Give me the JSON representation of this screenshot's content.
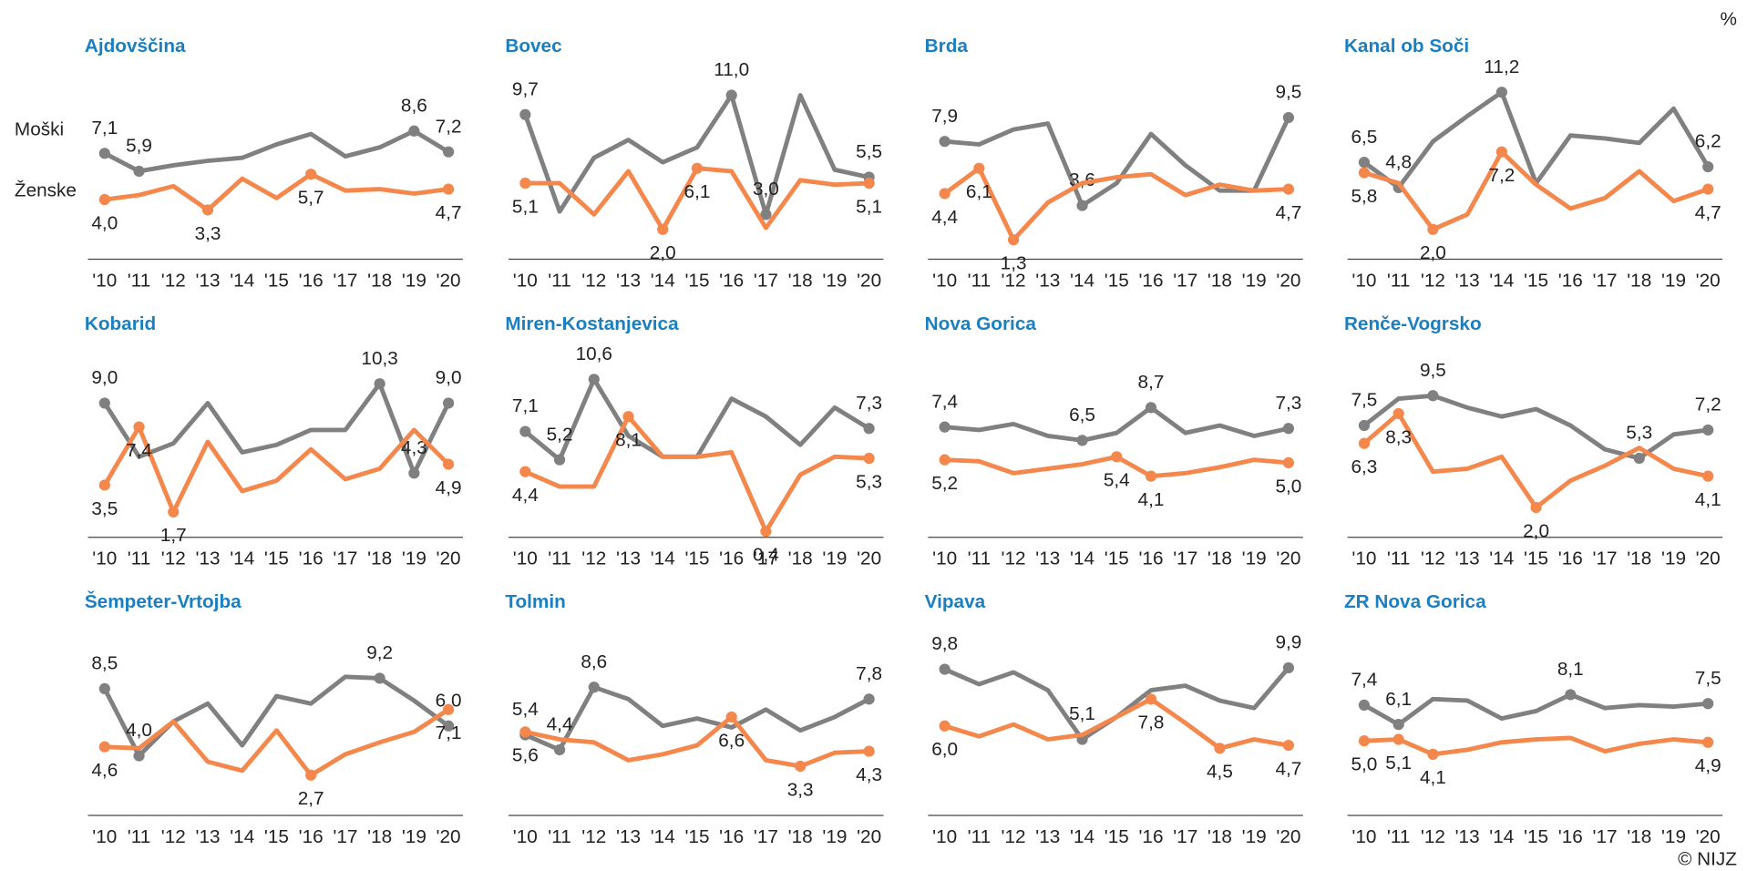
{
  "unit": "%",
  "source": "© NIJZ",
  "chart_data": [
    {
      "type": "line",
      "title": "Ajdovščina",
      "categories": [
        "'10",
        "'11",
        "'12",
        "'13",
        "'14",
        "'15",
        "'16",
        "'17",
        "'18",
        "'19",
        "'20"
      ],
      "ylim": [
        0,
        12
      ],
      "series": [
        {
          "name": "Moški",
          "color": "#808080",
          "values": [
            7.1,
            5.9,
            6.3,
            6.6,
            6.8,
            7.7,
            8.4,
            6.9,
            7.5,
            8.6,
            7.2
          ],
          "value_labels": [
            "7,1",
            "5,9",
            null,
            null,
            null,
            null,
            null,
            null,
            null,
            "8,6",
            "7,2"
          ]
        },
        {
          "name": "Ženske",
          "color": "#f4874b",
          "values": [
            4.0,
            4.3,
            4.9,
            3.3,
            5.4,
            4.1,
            5.7,
            4.6,
            4.7,
            4.4,
            4.7
          ],
          "value_labels": [
            "4,0",
            null,
            null,
            "3,3",
            null,
            null,
            "5,7",
            null,
            null,
            null,
            "4,7"
          ]
        }
      ]
    },
    {
      "type": "line",
      "title": "Bovec",
      "categories": [
        "'10",
        "'11",
        "'12",
        "'13",
        "'14",
        "'15",
        "'16",
        "'17",
        "'18",
        "'19",
        "'20"
      ],
      "ylim": [
        0,
        12
      ],
      "series": [
        {
          "name": "Moški",
          "color": "#808080",
          "values": [
            9.7,
            3.2,
            6.8,
            8.0,
            6.5,
            7.5,
            11.0,
            3.0,
            11.0,
            6.0,
            5.5
          ],
          "value_labels": [
            "9,7",
            null,
            null,
            null,
            null,
            null,
            "11,0",
            "3,0",
            null,
            null,
            "5,5"
          ]
        },
        {
          "name": "Ženske",
          "color": "#f4874b",
          "values": [
            5.1,
            5.1,
            3.0,
            5.9,
            2.0,
            6.1,
            5.9,
            2.1,
            5.3,
            5.0,
            5.1
          ],
          "value_labels": [
            "5,1",
            null,
            null,
            null,
            "2,0",
            "6,1",
            null,
            null,
            null,
            null,
            "5,1"
          ]
        }
      ]
    },
    {
      "type": "line",
      "title": "Brda",
      "categories": [
        "'10",
        "'11",
        "'12",
        "'13",
        "'14",
        "'15",
        "'16",
        "'17",
        "'18",
        "'19",
        "'20"
      ],
      "ylim": [
        0,
        12
      ],
      "series": [
        {
          "name": "Moški",
          "color": "#808080",
          "values": [
            7.9,
            7.7,
            8.7,
            9.1,
            3.6,
            5.1,
            8.4,
            6.3,
            4.6,
            4.6,
            9.5
          ],
          "value_labels": [
            "7,9",
            null,
            null,
            null,
            "3,6",
            null,
            null,
            null,
            null,
            null,
            "9,5"
          ]
        },
        {
          "name": "Ženske",
          "color": "#f4874b",
          "values": [
            4.4,
            6.1,
            1.3,
            3.8,
            5.1,
            5.5,
            5.7,
            4.3,
            5.0,
            4.6,
            4.7
          ],
          "value_labels": [
            "4,4",
            "6,1",
            "1,3",
            null,
            null,
            null,
            null,
            null,
            null,
            null,
            "4,7"
          ]
        }
      ]
    },
    {
      "type": "line",
      "title": "Kanal ob Soči",
      "categories": [
        "'10",
        "'11",
        "'12",
        "'13",
        "'14",
        "'15",
        "'16",
        "'17",
        "'18",
        "'19",
        "'20"
      ],
      "ylim": [
        0,
        12
      ],
      "series": [
        {
          "name": "Moški",
          "color": "#808080",
          "values": [
            6.5,
            4.8,
            7.9,
            9.6,
            11.2,
            5.1,
            8.3,
            8.1,
            7.8,
            10.1,
            6.2
          ],
          "value_labels": [
            "6,5",
            "4,8",
            null,
            null,
            "11,2",
            null,
            null,
            null,
            null,
            null,
            "6,2"
          ]
        },
        {
          "name": "Ženske",
          "color": "#f4874b",
          "values": [
            5.8,
            5.1,
            2.0,
            3.0,
            7.2,
            5.0,
            3.4,
            4.1,
            5.9,
            3.9,
            4.7
          ],
          "value_labels": [
            "5,8",
            null,
            "2,0",
            null,
            "7,2",
            null,
            null,
            null,
            null,
            null,
            "4,7"
          ]
        }
      ]
    },
    {
      "type": "line",
      "title": "Kobarid",
      "categories": [
        "'10",
        "'11",
        "'12",
        "'13",
        "'14",
        "'15",
        "'16",
        "'17",
        "'18",
        "'19",
        "'20"
      ],
      "ylim": [
        0,
        12
      ],
      "series": [
        {
          "name": "Moški",
          "color": "#808080",
          "values": [
            9.0,
            5.4,
            6.3,
            9.0,
            5.7,
            6.2,
            7.2,
            7.2,
            10.3,
            4.3,
            9.0
          ],
          "value_labels": [
            "9,0",
            null,
            null,
            null,
            null,
            null,
            null,
            null,
            "10,3",
            "4,3",
            "9,0"
          ]
        },
        {
          "name": "Ženske",
          "color": "#f4874b",
          "values": [
            3.5,
            7.4,
            1.7,
            6.4,
            3.1,
            3.8,
            5.9,
            3.9,
            4.6,
            7.2,
            4.9
          ],
          "value_labels": [
            "3,5",
            "7,4",
            "1,7",
            null,
            null,
            null,
            null,
            null,
            null,
            null,
            "4,9"
          ]
        }
      ]
    },
    {
      "type": "line",
      "title": "Miren-Kostanjevica",
      "categories": [
        "'10",
        "'11",
        "'12",
        "'13",
        "'14",
        "'15",
        "'16",
        "'17",
        "'18",
        "'19",
        "'20"
      ],
      "ylim": [
        0,
        12
      ],
      "series": [
        {
          "name": "Moški",
          "color": "#808080",
          "values": [
            7.1,
            5.2,
            10.6,
            6.8,
            5.4,
            5.4,
            9.3,
            8.1,
            6.2,
            8.7,
            7.3
          ],
          "value_labels": [
            "7,1",
            "5,2",
            "10,6",
            null,
            null,
            null,
            null,
            null,
            null,
            null,
            "7,3"
          ]
        },
        {
          "name": "Ženske",
          "color": "#f4874b",
          "values": [
            4.4,
            3.4,
            3.4,
            8.1,
            5.4,
            5.4,
            5.7,
            0.4,
            4.2,
            5.4,
            5.3
          ],
          "value_labels": [
            "4,4",
            null,
            null,
            "8,1",
            null,
            null,
            null,
            "0,4",
            null,
            null,
            "5,3"
          ]
        }
      ]
    },
    {
      "type": "line",
      "title": "Nova Gorica",
      "categories": [
        "'10",
        "'11",
        "'12",
        "'13",
        "'14",
        "'15",
        "'16",
        "'17",
        "'18",
        "'19",
        "'20"
      ],
      "ylim": [
        0,
        12
      ],
      "series": [
        {
          "name": "Moški",
          "color": "#808080",
          "values": [
            7.4,
            7.2,
            7.6,
            6.8,
            6.5,
            7.0,
            8.7,
            7.0,
            7.5,
            6.8,
            7.3
          ],
          "value_labels": [
            "7,4",
            null,
            null,
            null,
            "6,5",
            null,
            "8,7",
            null,
            null,
            null,
            "7,3"
          ]
        },
        {
          "name": "Ženske",
          "color": "#f4874b",
          "values": [
            5.2,
            5.1,
            4.3,
            4.6,
            4.9,
            5.4,
            4.1,
            4.3,
            4.7,
            5.2,
            5.0
          ],
          "value_labels": [
            "5,2",
            null,
            null,
            null,
            null,
            "5,4",
            "4,1",
            null,
            null,
            null,
            "5,0"
          ]
        }
      ]
    },
    {
      "type": "line",
      "title": "Renče-Vogrsko",
      "categories": [
        "'10",
        "'11",
        "'12",
        "'13",
        "'14",
        "'15",
        "'16",
        "'17",
        "'18",
        "'19",
        "'20"
      ],
      "ylim": [
        0,
        12
      ],
      "series": [
        {
          "name": "Moški",
          "color": "#808080",
          "values": [
            7.5,
            9.3,
            9.5,
            8.7,
            8.1,
            8.6,
            7.5,
            5.9,
            5.3,
            6.9,
            7.2
          ],
          "value_labels": [
            "7,5",
            null,
            "9,5",
            null,
            null,
            null,
            null,
            null,
            "5,3",
            null,
            "7,2"
          ]
        },
        {
          "name": "Ženske",
          "color": "#f4874b",
          "values": [
            6.3,
            8.3,
            4.4,
            4.6,
            5.4,
            2.0,
            3.8,
            4.8,
            6.0,
            4.6,
            4.1
          ],
          "value_labels": [
            "6,3",
            "8,3",
            null,
            null,
            null,
            "2,0",
            null,
            null,
            null,
            null,
            "4,1"
          ]
        }
      ]
    },
    {
      "type": "line",
      "title": "Šempeter-Vrtojba",
      "categories": [
        "'10",
        "'11",
        "'12",
        "'13",
        "'14",
        "'15",
        "'16",
        "'17",
        "'18",
        "'19",
        "'20"
      ],
      "ylim": [
        0,
        12
      ],
      "series": [
        {
          "name": "Moški",
          "color": "#808080",
          "values": [
            8.5,
            4.0,
            6.3,
            7.5,
            4.7,
            8.0,
            7.5,
            9.3,
            9.2,
            7.7,
            6.0
          ],
          "value_labels": [
            "8,5",
            "4,0",
            null,
            null,
            null,
            null,
            null,
            null,
            "9,2",
            null,
            "6,0"
          ]
        },
        {
          "name": "Ženske",
          "color": "#f4874b",
          "values": [
            4.6,
            4.5,
            6.3,
            3.6,
            3.0,
            5.7,
            2.7,
            4.1,
            4.9,
            5.6,
            7.1
          ],
          "value_labels": [
            "4,6",
            null,
            null,
            null,
            null,
            null,
            "2,7",
            null,
            null,
            null,
            "7,1"
          ]
        }
      ]
    },
    {
      "type": "line",
      "title": "Tolmin",
      "categories": [
        "'10",
        "'11",
        "'12",
        "'13",
        "'14",
        "'15",
        "'16",
        "'17",
        "'18",
        "'19",
        "'20"
      ],
      "ylim": [
        0,
        12
      ],
      "series": [
        {
          "name": "Moški",
          "color": "#808080",
          "values": [
            5.4,
            4.4,
            8.6,
            7.8,
            6.0,
            6.5,
            5.9,
            7.1,
            5.7,
            6.6,
            7.8
          ],
          "value_labels": [
            "5,4",
            "4,4",
            "8,6",
            null,
            null,
            null,
            null,
            null,
            null,
            null,
            "7,8"
          ]
        },
        {
          "name": "Ženske",
          "color": "#f4874b",
          "values": [
            5.6,
            5.1,
            4.9,
            3.7,
            4.1,
            4.7,
            6.6,
            3.7,
            3.3,
            4.2,
            4.3
          ],
          "value_labels": [
            "5,6",
            null,
            null,
            null,
            null,
            null,
            "6,6",
            null,
            "3,3",
            null,
            "4,3"
          ]
        }
      ]
    },
    {
      "type": "line",
      "title": "Vipava",
      "categories": [
        "'10",
        "'11",
        "'12",
        "'13",
        "'14",
        "'15",
        "'16",
        "'17",
        "'18",
        "'19",
        "'20"
      ],
      "ylim": [
        0,
        12
      ],
      "series": [
        {
          "name": "Moški",
          "color": "#808080",
          "values": [
            9.8,
            8.8,
            9.6,
            8.4,
            5.1,
            6.6,
            8.4,
            8.7,
            7.7,
            7.2,
            9.9
          ],
          "value_labels": [
            "9,8",
            null,
            null,
            null,
            "5,1",
            null,
            null,
            null,
            null,
            null,
            "9,9"
          ]
        },
        {
          "name": "Ženske",
          "color": "#f4874b",
          "values": [
            6.0,
            5.3,
            6.1,
            5.1,
            5.4,
            6.6,
            7.8,
            6.2,
            4.5,
            5.1,
            4.7
          ],
          "value_labels": [
            "6,0",
            null,
            null,
            null,
            null,
            null,
            "7,8",
            null,
            "4,5",
            null,
            "4,7"
          ]
        }
      ]
    },
    {
      "type": "line",
      "title": "ZR Nova Gorica",
      "categories": [
        "'10",
        "'11",
        "'12",
        "'13",
        "'14",
        "'15",
        "'16",
        "'17",
        "'18",
        "'19",
        "'20"
      ],
      "ylim": [
        0,
        12
      ],
      "series": [
        {
          "name": "Moški",
          "color": "#808080",
          "values": [
            7.4,
            6.1,
            7.8,
            7.7,
            6.5,
            7.0,
            8.1,
            7.2,
            7.4,
            7.3,
            7.5
          ],
          "value_labels": [
            "7,4",
            "6,1",
            null,
            null,
            null,
            null,
            "8,1",
            null,
            null,
            null,
            "7,5"
          ]
        },
        {
          "name": "Ženske",
          "color": "#f4874b",
          "values": [
            5.0,
            5.1,
            4.1,
            4.4,
            4.9,
            5.1,
            5.2,
            4.3,
            4.8,
            5.1,
            4.9
          ],
          "value_labels": [
            "5,0",
            "5,1",
            "4,1",
            null,
            null,
            null,
            null,
            null,
            null,
            null,
            "4,9"
          ]
        }
      ]
    }
  ]
}
